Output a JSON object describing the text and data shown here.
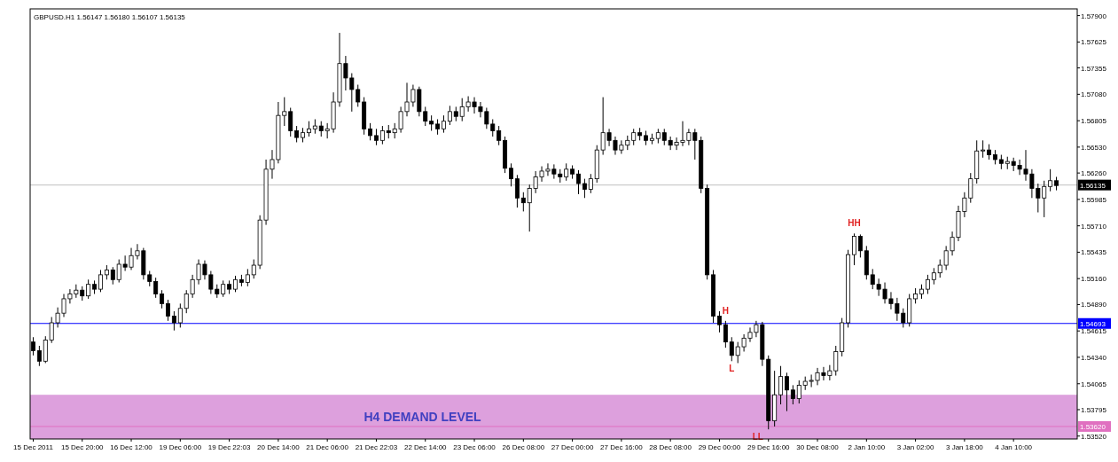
{
  "chart_data": {
    "type": "candlestick",
    "title": "GBPUSD.H1  1.56147 1.56180 1.56107 1.56135",
    "color": "#000000",
    "categories": [
      "15 Dec 2011",
      null,
      null,
      null,
      null,
      null,
      null,
      null,
      "15 Dec 20:00",
      null,
      null,
      null,
      null,
      null,
      null,
      null,
      "16 Dec 12:00",
      null,
      null,
      null,
      null,
      null,
      null,
      null,
      "19 Dec 06:00",
      null,
      null,
      null,
      null,
      null,
      null,
      null,
      "19 Dec 22:03",
      null,
      null,
      null,
      null,
      null,
      null,
      null,
      "20 Dec 14:00",
      null,
      null,
      null,
      null,
      null,
      null,
      null,
      "21 Dec 06:00",
      null,
      null,
      null,
      null,
      null,
      null,
      null,
      "21 Dec 22:03",
      null,
      null,
      null,
      null,
      null,
      null,
      null,
      "22 Dec 14:00",
      null,
      null,
      null,
      null,
      null,
      null,
      null,
      "23 Dec 06:00",
      null,
      null,
      null,
      null,
      null,
      null,
      null,
      "26 Dec 08:00",
      null,
      null,
      null,
      null,
      null,
      null,
      null,
      "27 Dec 00:00",
      null,
      null,
      null,
      null,
      null,
      null,
      null,
      "27 Dec 16:00",
      null,
      null,
      null,
      null,
      null,
      null,
      null,
      "28 Dec 08:00",
      null,
      null,
      null,
      null,
      null,
      null,
      null,
      "29 Dec 00:00",
      null,
      null,
      null,
      null,
      null,
      null,
      null,
      "29 Dec 16:00",
      null,
      null,
      null,
      null,
      null,
      null,
      null,
      "30 Dec 08:00",
      null,
      null,
      null,
      null,
      null,
      null,
      null,
      "2 Jan 10:00",
      null,
      null,
      null,
      null,
      null,
      null,
      null,
      "3 Jan 02:00",
      null,
      null,
      null,
      null,
      null,
      null,
      null,
      "3 Jan 18:00",
      null,
      null,
      null,
      null,
      null,
      null,
      null,
      "4 Jan 10:00",
      null,
      null,
      null,
      null,
      null,
      null,
      null
    ],
    "ohlc": [
      [
        1.545,
        1.5455,
        1.5436,
        1.5441
      ],
      [
        1.5441,
        1.5446,
        1.5425,
        1.543
      ],
      [
        1.543,
        1.5456,
        1.5428,
        1.5452
      ],
      [
        1.5452,
        1.5476,
        1.5449,
        1.547
      ],
      [
        1.547,
        1.5486,
        1.5465,
        1.548
      ],
      [
        1.548,
        1.55,
        1.5476,
        1.5495
      ],
      [
        1.5495,
        1.5505,
        1.549,
        1.55
      ],
      [
        1.55,
        1.551,
        1.5496,
        1.5504
      ],
      [
        1.5504,
        1.5508,
        1.5493,
        1.5498
      ],
      [
        1.5498,
        1.5515,
        1.5495,
        1.551
      ],
      [
        1.551,
        1.5514,
        1.55,
        1.5505
      ],
      [
        1.5505,
        1.5525,
        1.5502,
        1.552
      ],
      [
        1.552,
        1.553,
        1.5515,
        1.5525
      ],
      [
        1.5525,
        1.5528,
        1.551,
        1.5515
      ],
      [
        1.5515,
        1.5536,
        1.5512,
        1.5531
      ],
      [
        1.5531,
        1.554,
        1.5524,
        1.5528
      ],
      [
        1.5528,
        1.5548,
        1.5525,
        1.554
      ],
      [
        1.554,
        1.5552,
        1.5536,
        1.5545
      ],
      [
        1.5545,
        1.5548,
        1.5515,
        1.552
      ],
      [
        1.552,
        1.5524,
        1.5508,
        1.5513
      ],
      [
        1.5513,
        1.5517,
        1.5496,
        1.55
      ],
      [
        1.55,
        1.5504,
        1.5485,
        1.549
      ],
      [
        1.549,
        1.5494,
        1.5472,
        1.5477
      ],
      [
        1.5477,
        1.5482,
        1.5462,
        1.547
      ],
      [
        1.547,
        1.549,
        1.5465,
        1.5485
      ],
      [
        1.5485,
        1.5504,
        1.548,
        1.55
      ],
      [
        1.55,
        1.552,
        1.5496,
        1.5515
      ],
      [
        1.5515,
        1.5536,
        1.551,
        1.5531
      ],
      [
        1.5531,
        1.5535,
        1.5515,
        1.552
      ],
      [
        1.552,
        1.5524,
        1.55,
        1.5505
      ],
      [
        1.5505,
        1.551,
        1.5496,
        1.55
      ],
      [
        1.55,
        1.5514,
        1.5497,
        1.551
      ],
      [
        1.551,
        1.5514,
        1.55,
        1.5505
      ],
      [
        1.5505,
        1.5519,
        1.5502,
        1.5515
      ],
      [
        1.5515,
        1.552,
        1.5508,
        1.5512
      ],
      [
        1.5512,
        1.5526,
        1.5508,
        1.552
      ],
      [
        1.552,
        1.5536,
        1.5516,
        1.553
      ],
      [
        1.553,
        1.5582,
        1.5526,
        1.5577
      ],
      [
        1.5577,
        1.564,
        1.5572,
        1.563
      ],
      [
        1.563,
        1.565,
        1.562,
        1.564
      ],
      [
        1.564,
        1.57,
        1.5636,
        1.5686
      ],
      [
        1.5686,
        1.5705,
        1.5675,
        1.569
      ],
      [
        1.569,
        1.5694,
        1.5664,
        1.567
      ],
      [
        1.567,
        1.5675,
        1.5658,
        1.5663
      ],
      [
        1.5663,
        1.5673,
        1.5658,
        1.5668
      ],
      [
        1.5668,
        1.568,
        1.5664,
        1.5672
      ],
      [
        1.5672,
        1.5682,
        1.5667,
        1.5675
      ],
      [
        1.5675,
        1.568,
        1.5664,
        1.567
      ],
      [
        1.567,
        1.5678,
        1.5662,
        1.5672
      ],
      [
        1.5672,
        1.571,
        1.5668,
        1.57
      ],
      [
        1.57,
        1.5772,
        1.5695,
        1.574
      ],
      [
        1.574,
        1.5748,
        1.5712,
        1.5725
      ],
      [
        1.5725,
        1.573,
        1.569,
        1.5713
      ],
      [
        1.5713,
        1.5718,
        1.5695,
        1.57
      ],
      [
        1.57,
        1.5705,
        1.5666,
        1.5672
      ],
      [
        1.5672,
        1.5678,
        1.566,
        1.5665
      ],
      [
        1.5665,
        1.5672,
        1.5655,
        1.566
      ],
      [
        1.566,
        1.5675,
        1.5656,
        1.567
      ],
      [
        1.567,
        1.5676,
        1.5662,
        1.5668
      ],
      [
        1.5668,
        1.5678,
        1.5662,
        1.5672
      ],
      [
        1.5672,
        1.5695,
        1.5668,
        1.569
      ],
      [
        1.569,
        1.572,
        1.5685,
        1.57
      ],
      [
        1.57,
        1.5718,
        1.5695,
        1.5713
      ],
      [
        1.5713,
        1.5716,
        1.5685,
        1.569
      ],
      [
        1.569,
        1.5695,
        1.5675,
        1.568
      ],
      [
        1.568,
        1.5686,
        1.567,
        1.5677
      ],
      [
        1.5677,
        1.5682,
        1.5666,
        1.5672
      ],
      [
        1.5672,
        1.5686,
        1.5668,
        1.568
      ],
      [
        1.568,
        1.5696,
        1.5676,
        1.569
      ],
      [
        1.569,
        1.5695,
        1.568,
        1.5685
      ],
      [
        1.5685,
        1.5704,
        1.568,
        1.5695
      ],
      [
        1.5695,
        1.5706,
        1.569,
        1.57
      ],
      [
        1.57,
        1.5705,
        1.5688,
        1.5695
      ],
      [
        1.5695,
        1.57,
        1.5684,
        1.569
      ],
      [
        1.569,
        1.5694,
        1.5672,
        1.5677
      ],
      [
        1.5677,
        1.5682,
        1.5664,
        1.567
      ],
      [
        1.567,
        1.5675,
        1.5655,
        1.566
      ],
      [
        1.566,
        1.5664,
        1.5626,
        1.5631
      ],
      [
        1.5631,
        1.5636,
        1.5612,
        1.562
      ],
      [
        1.562,
        1.5624,
        1.559,
        1.56
      ],
      [
        1.56,
        1.5606,
        1.5586,
        1.5595
      ],
      [
        1.5595,
        1.5614,
        1.5565,
        1.561
      ],
      [
        1.561,
        1.5628,
        1.5605,
        1.5622
      ],
      [
        1.5622,
        1.5633,
        1.5617,
        1.5628
      ],
      [
        1.5628,
        1.5636,
        1.5623,
        1.563
      ],
      [
        1.563,
        1.5635,
        1.562,
        1.5625
      ],
      [
        1.5625,
        1.563,
        1.5616,
        1.5622
      ],
      [
        1.5622,
        1.5636,
        1.5618,
        1.563
      ],
      [
        1.563,
        1.5634,
        1.562,
        1.5625
      ],
      [
        1.5625,
        1.5629,
        1.5604,
        1.5615
      ],
      [
        1.5615,
        1.562,
        1.56,
        1.5609
      ],
      [
        1.5609,
        1.5625,
        1.5605,
        1.562
      ],
      [
        1.562,
        1.5655,
        1.5616,
        1.565
      ],
      [
        1.565,
        1.5705,
        1.5645,
        1.5668
      ],
      [
        1.5668,
        1.5672,
        1.5654,
        1.566
      ],
      [
        1.566,
        1.5664,
        1.5645,
        1.565
      ],
      [
        1.565,
        1.566,
        1.5646,
        1.5655
      ],
      [
        1.5655,
        1.5665,
        1.565,
        1.566
      ],
      [
        1.566,
        1.5672,
        1.5655,
        1.5668
      ],
      [
        1.5668,
        1.5673,
        1.566,
        1.5665
      ],
      [
        1.5665,
        1.567,
        1.5655,
        1.566
      ],
      [
        1.566,
        1.5667,
        1.5656,
        1.5662
      ],
      [
        1.5662,
        1.5672,
        1.5657,
        1.5668
      ],
      [
        1.5668,
        1.5672,
        1.5655,
        1.566
      ],
      [
        1.566,
        1.5664,
        1.565,
        1.5655
      ],
      [
        1.5655,
        1.5663,
        1.565,
        1.5658
      ],
      [
        1.5658,
        1.568,
        1.5654,
        1.566
      ],
      [
        1.566,
        1.5672,
        1.5655,
        1.5668
      ],
      [
        1.5668,
        1.5672,
        1.564,
        1.566
      ],
      [
        1.566,
        1.5664,
        1.5605,
        1.561
      ],
      [
        1.561,
        1.5614,
        1.5515,
        1.552
      ],
      [
        1.552,
        1.5525,
        1.547,
        1.5477
      ],
      [
        1.5477,
        1.5482,
        1.546,
        1.5468
      ],
      [
        1.5468,
        1.5472,
        1.5444,
        1.545
      ],
      [
        1.545,
        1.5455,
        1.543,
        1.5436
      ],
      [
        1.5436,
        1.545,
        1.5428,
        1.5445
      ],
      [
        1.5445,
        1.5458,
        1.544,
        1.5454
      ],
      [
        1.5454,
        1.5465,
        1.545,
        1.546
      ],
      [
        1.546,
        1.5472,
        1.5455,
        1.5468
      ],
      [
        1.5468,
        1.5471,
        1.5425,
        1.5432
      ],
      [
        1.5432,
        1.5436,
        1.5359,
        1.5368
      ],
      [
        1.5368,
        1.542,
        1.5362,
        1.5395
      ],
      [
        1.5395,
        1.5425,
        1.5385,
        1.5414
      ],
      [
        1.5414,
        1.5418,
        1.5378,
        1.54
      ],
      [
        1.54,
        1.5405,
        1.5385,
        1.5391
      ],
      [
        1.5391,
        1.541,
        1.5386,
        1.5405
      ],
      [
        1.5405,
        1.5414,
        1.54,
        1.5409
      ],
      [
        1.5409,
        1.5416,
        1.5403,
        1.541
      ],
      [
        1.541,
        1.5423,
        1.5405,
        1.5418
      ],
      [
        1.5418,
        1.5424,
        1.541,
        1.5415
      ],
      [
        1.5415,
        1.5426,
        1.541,
        1.542
      ],
      [
        1.542,
        1.5446,
        1.5415,
        1.544
      ],
      [
        1.544,
        1.5475,
        1.5435,
        1.547
      ],
      [
        1.547,
        1.5546,
        1.5465,
        1.5541
      ],
      [
        1.5541,
        1.5563,
        1.553,
        1.556
      ],
      [
        1.556,
        1.5562,
        1.5538,
        1.5545
      ],
      [
        1.5545,
        1.555,
        1.5515,
        1.552
      ],
      [
        1.552,
        1.5526,
        1.5505,
        1.551
      ],
      [
        1.551,
        1.5516,
        1.5498,
        1.5505
      ],
      [
        1.5505,
        1.5512,
        1.549,
        1.5495
      ],
      [
        1.5495,
        1.5502,
        1.5484,
        1.549
      ],
      [
        1.549,
        1.5496,
        1.5472,
        1.548
      ],
      [
        1.548,
        1.5485,
        1.5465,
        1.547
      ],
      [
        1.547,
        1.55,
        1.5466,
        1.5495
      ],
      [
        1.5495,
        1.5506,
        1.549,
        1.55
      ],
      [
        1.55,
        1.551,
        1.5495,
        1.5505
      ],
      [
        1.5505,
        1.552,
        1.55,
        1.5515
      ],
      [
        1.5515,
        1.5527,
        1.551,
        1.5522
      ],
      [
        1.5522,
        1.5536,
        1.5517,
        1.553
      ],
      [
        1.553,
        1.555,
        1.5525,
        1.5545
      ],
      [
        1.5545,
        1.5565,
        1.554,
        1.5559
      ],
      [
        1.5559,
        1.5592,
        1.5555,
        1.5586
      ],
      [
        1.5586,
        1.5606,
        1.558,
        1.56
      ],
      [
        1.56,
        1.5626,
        1.5595,
        1.562
      ],
      [
        1.562,
        1.566,
        1.5615,
        1.5649
      ],
      [
        1.5649,
        1.566,
        1.5642,
        1.565
      ],
      [
        1.565,
        1.5656,
        1.564,
        1.5645
      ],
      [
        1.5645,
        1.565,
        1.5635,
        1.564
      ],
      [
        1.564,
        1.5645,
        1.563,
        1.5636
      ],
      [
        1.5636,
        1.5643,
        1.563,
        1.5638
      ],
      [
        1.5638,
        1.5642,
        1.5628,
        1.5634
      ],
      [
        1.5634,
        1.564,
        1.5624,
        1.563
      ],
      [
        1.563,
        1.565,
        1.5618,
        1.5625
      ],
      [
        1.5625,
        1.563,
        1.56,
        1.561
      ],
      [
        1.561,
        1.5615,
        1.5585,
        1.56
      ],
      [
        1.56,
        1.5618,
        1.558,
        1.5612
      ],
      [
        1.5612,
        1.563,
        1.5607,
        1.5618
      ],
      [
        1.5618,
        1.5622,
        1.5608,
        1.5613
      ]
    ],
    "ylim": [
      1.5349,
      1.5797
    ],
    "yticks": [
      {
        "value": 1.579,
        "label": "1.57900"
      },
      {
        "value": 1.57625,
        "label": "1.57625"
      },
      {
        "value": 1.57355,
        "label": "1.57355"
      },
      {
        "value": 1.5708,
        "label": "1.57080"
      },
      {
        "value": 1.56805,
        "label": "1.56805"
      },
      {
        "value": 1.5653,
        "label": "1.56530"
      },
      {
        "value": 1.5626,
        "label": "1.56260"
      },
      {
        "value": 1.55985,
        "label": "1.55985"
      },
      {
        "value": 1.5571,
        "label": "1.55710"
      },
      {
        "value": 1.55435,
        "label": "1.55435"
      },
      {
        "value": 1.5516,
        "label": "1.55160"
      },
      {
        "value": 1.5489,
        "label": "1.54890"
      },
      {
        "value": 1.54615,
        "label": "1.54615"
      },
      {
        "value": 1.5434,
        "label": "1.54340"
      },
      {
        "value": 1.54065,
        "label": "1.54065"
      },
      {
        "value": 1.53795,
        "label": "1.53795"
      },
      {
        "value": 1.5352,
        "label": "1.53520"
      }
    ],
    "ref_lines": [
      {
        "axis": "y",
        "value": 1.56135,
        "label": "1.56135",
        "color": "#c0c0c0"
      },
      {
        "axis": "y",
        "value": 1.54693,
        "label": "1.54693",
        "color": "#0000ff"
      },
      {
        "axis": "y",
        "value": 1.5362,
        "label": "1.53620",
        "color": "#e070c0"
      }
    ],
    "bands": [
      {
        "axis": "y",
        "from": 1.5349,
        "to": 1.5395,
        "label": "H4 DEMAND LEVEL",
        "color": "#dda0dd"
      }
    ],
    "annotations": [
      {
        "text": "H",
        "y": 1.5472
      },
      {
        "text": "L",
        "y": 1.543
      },
      {
        "text": "LL",
        "y": 1.5359
      },
      {
        "text": "HH",
        "y": 1.5563
      }
    ]
  }
}
